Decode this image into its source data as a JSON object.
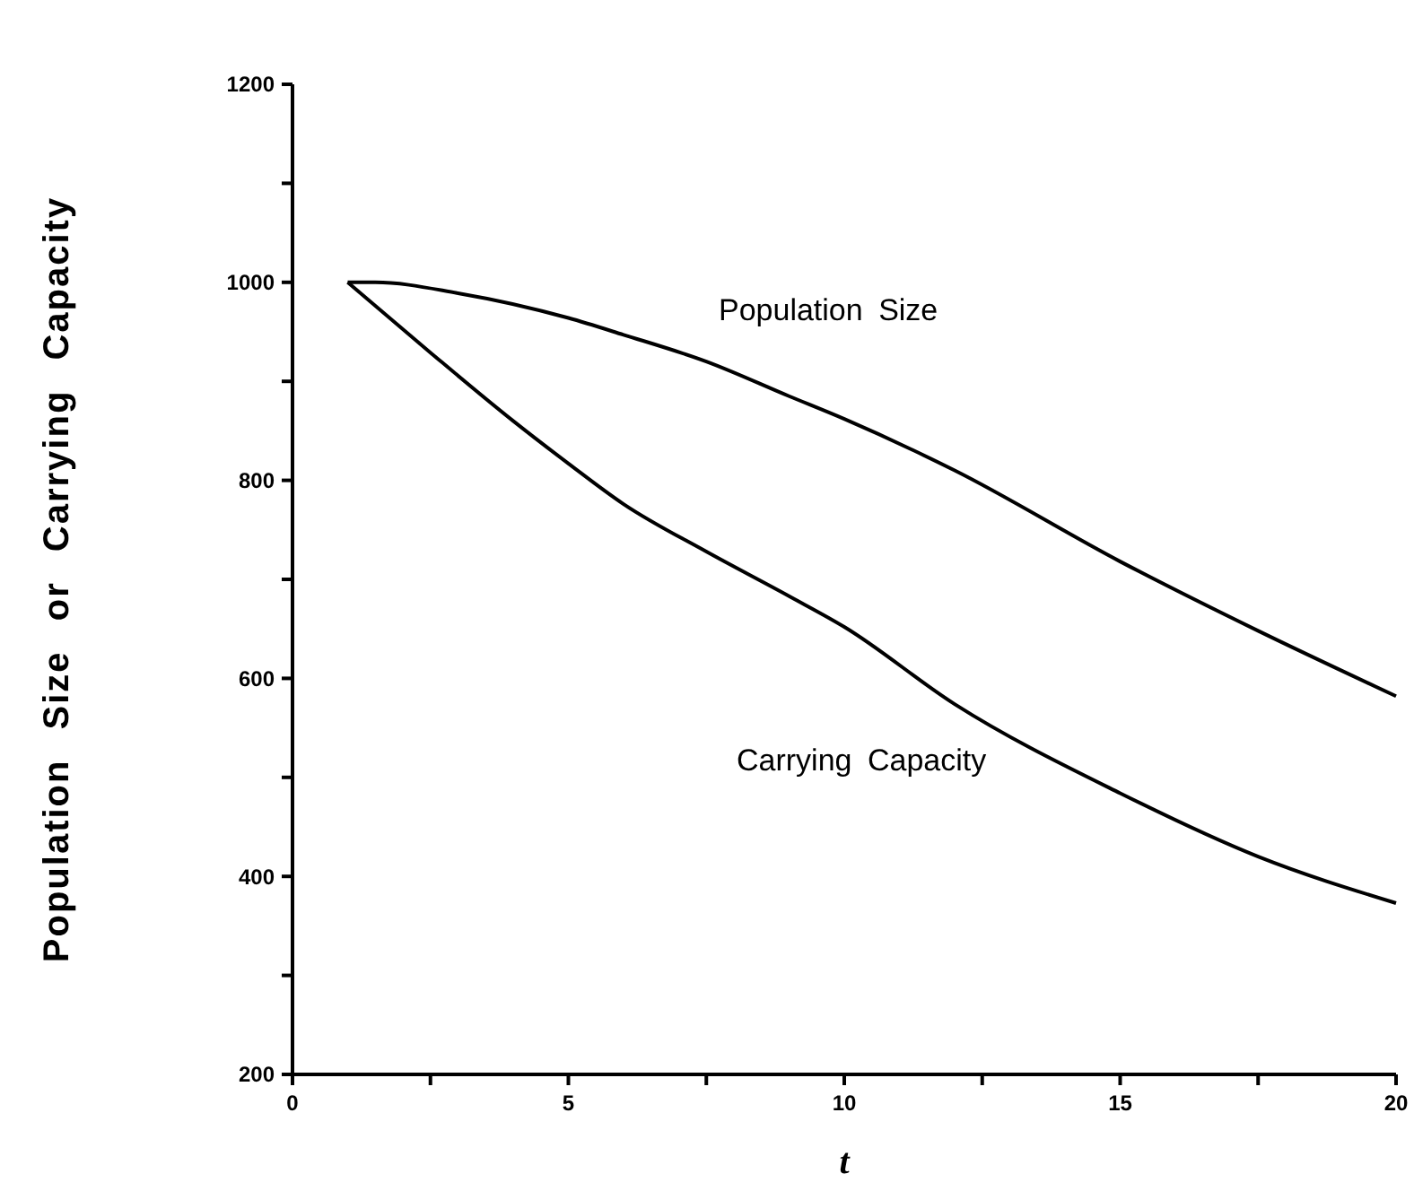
{
  "chart_data": {
    "type": "line",
    "xlabel": "t",
    "ylabel": "Population Size or Carrying Capacity",
    "xlim": [
      0,
      20
    ],
    "ylim": [
      200,
      1200
    ],
    "xticks": [
      0,
      {
        "value": 2.5,
        "label": null
      },
      5,
      {
        "value": 7.5,
        "label": null
      },
      10,
      {
        "value": 12.5,
        "label": null
      },
      15,
      {
        "value": 17.5,
        "label": null
      },
      20
    ],
    "yticks": [
      200,
      {
        "value": 300,
        "label": null
      },
      400,
      {
        "value": 500,
        "label": null
      },
      600,
      {
        "value": 700,
        "label": null
      },
      800,
      {
        "value": 900,
        "label": null
      },
      1000,
      {
        "value": 1100,
        "label": null
      },
      1200
    ],
    "grid": false,
    "marker": "none",
    "line_style": "solid",
    "series": [
      {
        "name": "Population Size",
        "color": "#000000",
        "x": [
          1,
          1.5,
          3,
          5,
          6,
          7.5,
          9,
          10,
          12,
          15,
          17.5,
          20
        ],
        "values": [
          1000,
          1000,
          989,
          964,
          947,
          920,
          885,
          862,
          810,
          718,
          648,
          582
        ]
      },
      {
        "name": "Carrying Capacity",
        "color": "#000000",
        "x": [
          1,
          2.5,
          4,
          5,
          6,
          7.5,
          9,
          10,
          12,
          15,
          17.5,
          20
        ],
        "values": [
          1000,
          929,
          860,
          817,
          776,
          728,
          683,
          652,
          574,
          484,
          420,
          373
        ]
      }
    ]
  }
}
